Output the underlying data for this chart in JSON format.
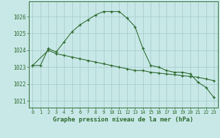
{
  "line1_x": [
    0,
    1,
    2,
    3,
    4,
    5,
    6,
    7,
    8,
    9,
    10,
    11,
    12,
    13,
    14,
    15,
    16,
    17,
    18,
    19,
    20,
    21,
    22,
    23
  ],
  "line1_y": [
    1023.1,
    1023.1,
    1024.1,
    1023.9,
    1024.5,
    1025.1,
    1025.5,
    1025.8,
    1026.1,
    1026.3,
    1026.3,
    1026.3,
    1025.9,
    1025.4,
    1024.1,
    1023.1,
    1023.0,
    1022.8,
    1022.7,
    1022.7,
    1022.6,
    1022.1,
    1021.8,
    1021.2
  ],
  "line2_x": [
    0,
    2,
    3,
    4,
    5,
    6,
    7,
    8,
    9,
    10,
    11,
    12,
    13,
    14,
    15,
    16,
    17,
    18,
    19,
    20,
    21,
    22,
    23
  ],
  "line2_y": [
    1023.1,
    1024.0,
    1023.8,
    1023.7,
    1023.6,
    1023.5,
    1023.4,
    1023.3,
    1023.2,
    1023.1,
    1023.0,
    1022.9,
    1022.8,
    1022.8,
    1022.7,
    1022.65,
    1022.6,
    1022.55,
    1022.5,
    1022.45,
    1022.4,
    1022.3,
    1022.2
  ],
  "line_color": "#2d6a2d",
  "bg_color": "#c8e8e8",
  "grid_color": "#aacccc",
  "xlabel": "Graphe pression niveau de la mer (hPa)",
  "ylim": [
    1020.6,
    1026.9
  ],
  "xlim": [
    -0.5,
    23.5
  ],
  "yticks": [
    1021,
    1022,
    1023,
    1024,
    1025,
    1026
  ],
  "xticks": [
    0,
    1,
    2,
    3,
    4,
    5,
    6,
    7,
    8,
    9,
    10,
    11,
    12,
    13,
    14,
    15,
    16,
    17,
    18,
    19,
    20,
    21,
    22,
    23
  ],
  "xtick_labels": [
    "0",
    "1",
    "2",
    "3",
    "4",
    "5",
    "6",
    "7",
    "8",
    "9",
    "10",
    "11",
    "12",
    "13",
    "14",
    "15",
    "16",
    "17",
    "18",
    "19",
    "20",
    "21",
    "22",
    "23"
  ],
  "marker": "+",
  "linewidth": 0.8,
  "marker_size": 3.5,
  "marker_ew": 0.9
}
